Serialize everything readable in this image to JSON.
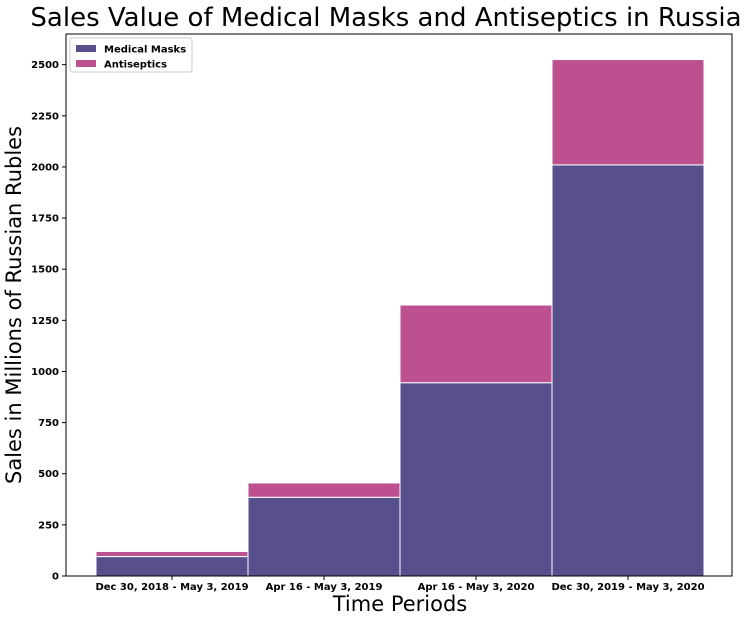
{
  "chart_data": {
    "type": "bar",
    "stacked": true,
    "title": "Sales Value of Medical Masks and Antiseptics in Russia",
    "xlabel": "Time Periods",
    "ylabel": "Sales in Millions of Russian Rubles",
    "categories": [
      "Dec 30, 2018 - May 3, 2019",
      "Apr 16 - May 3, 2019",
      "Apr 16 - May 3, 2020",
      "Dec 30, 2019 - May 3, 2020"
    ],
    "series": [
      {
        "name": "Medical Masks",
        "color": "#58508d",
        "values": [
          95,
          385,
          945,
          2010
        ]
      },
      {
        "name": "Antiseptics",
        "color": "#bc5090",
        "values": [
          25,
          70,
          380,
          515
        ]
      }
    ],
    "ylim": [
      0,
      2650
    ],
    "yticks": [
      0,
      250,
      500,
      750,
      1000,
      1250,
      1500,
      1750,
      2000,
      2250,
      2500
    ],
    "legend_position": "top-left",
    "grid": false
  }
}
